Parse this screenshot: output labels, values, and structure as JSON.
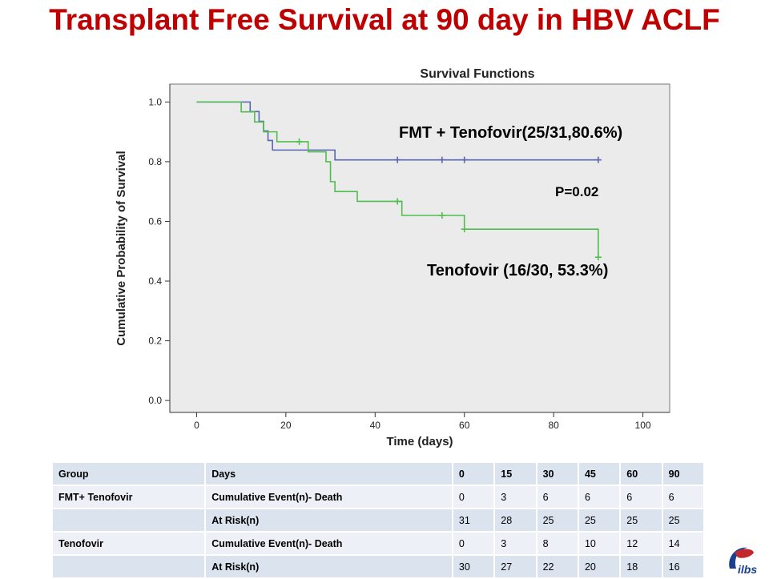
{
  "slide": {
    "title": "Transplant Free Survival at 90 day in HBV ACLF",
    "logo_text": "ilbs"
  },
  "colors": {
    "title": "#c00000",
    "plot_bg": "#ebebeb",
    "fmt_series": "#5865b2",
    "tenofovir_series": "#4fbe4f",
    "table_band_dark": "#dbe3ef",
    "table_band_light": "#edf1f7"
  },
  "chart_data": {
    "type": "line",
    "subtype": "kaplan-meier step",
    "title": "Survival Functions",
    "xlabel": "Time (days)",
    "ylabel": "Cumulative Probability of  Survival",
    "xlim": [
      -6,
      106
    ],
    "ylim": [
      -0.04,
      1.06
    ],
    "xticks": [
      "0",
      "20",
      "40",
      "60",
      "80",
      "100"
    ],
    "xtick_values": [
      0,
      20,
      40,
      60,
      80,
      100
    ],
    "yticks": [
      "0.0",
      "0.2",
      "0.4",
      "0.6",
      "0.8",
      "1.0"
    ],
    "ytick_values": [
      0,
      0.2,
      0.4,
      0.6,
      0.8,
      1.0
    ],
    "grid": false,
    "series": [
      {
        "name": "FMT + Tenofovir(25/31,80.6%)",
        "color": "#5865b2",
        "steps": [
          [
            0,
            1.0
          ],
          [
            12,
            0.968
          ],
          [
            14,
            0.935
          ],
          [
            15,
            0.903
          ],
          [
            16,
            0.871
          ],
          [
            17,
            0.839
          ],
          [
            31,
            0.806
          ],
          [
            90,
            0.806
          ]
        ],
        "censored": [
          [
            45,
            0.806
          ],
          [
            55,
            0.806
          ],
          [
            60,
            0.806
          ],
          [
            90,
            0.806
          ]
        ]
      },
      {
        "name": "Tenofovir (16/30, 53.3%)",
        "color": "#4fbe4f",
        "steps": [
          [
            0,
            1.0
          ],
          [
            10,
            0.967
          ],
          [
            13,
            0.933
          ],
          [
            15,
            0.9
          ],
          [
            18,
            0.867
          ],
          [
            25,
            0.833
          ],
          [
            29,
            0.8
          ],
          [
            30,
            0.733
          ],
          [
            31,
            0.7
          ],
          [
            36,
            0.667
          ],
          [
            46,
            0.62
          ],
          [
            60,
            0.574
          ],
          [
            90,
            0.48
          ]
        ],
        "censored": [
          [
            23,
            0.867
          ],
          [
            45,
            0.667
          ],
          [
            55,
            0.62
          ],
          [
            60,
            0.574
          ],
          [
            90,
            0.48
          ]
        ]
      }
    ],
    "annotations": [
      "P=0.02"
    ]
  },
  "table": {
    "header": [
      "Group",
      "Days",
      "0",
      "15",
      "30",
      "45",
      "60",
      "90"
    ],
    "rows": [
      [
        "FMT+ Tenofovir",
        "Cumulative Event(n)- Death",
        "0",
        "3",
        "6",
        "6",
        "6",
        "6"
      ],
      [
        "",
        "At Risk(n)",
        "31",
        "28",
        "25",
        "25",
        "25",
        "25"
      ],
      [
        "Tenofovir",
        "Cumulative Event(n)- Death",
        "0",
        "3",
        "8",
        "10",
        "12",
        "14"
      ],
      [
        "",
        "At Risk(n)",
        "30",
        "27",
        "22",
        "20",
        "18",
        "16"
      ]
    ]
  }
}
